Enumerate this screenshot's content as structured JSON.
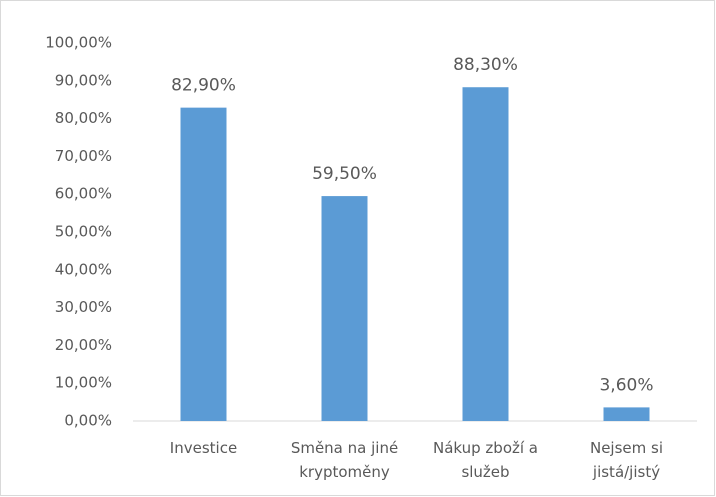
{
  "chart_data": {
    "type": "bar",
    "categories": [
      "Investice",
      "Směna na jiné kryptoměny",
      "Nákup zboží a služeb",
      "Nejsem si jistá/jistý"
    ],
    "values": [
      82.9,
      59.5,
      88.3,
      3.6
    ],
    "value_labels": [
      "82,90%",
      "59,50%",
      "88,30%",
      "3,60%"
    ],
    "color": "#5b9bd5",
    "ylim": [
      0,
      100
    ],
    "yticks": [
      {
        "value": 0,
        "label": "0,00%"
      },
      {
        "value": 10,
        "label": "10,00%"
      },
      {
        "value": 20,
        "label": "20,00%"
      },
      {
        "value": 30,
        "label": "30,00%"
      },
      {
        "value": 40,
        "label": "40,00%"
      },
      {
        "value": 50,
        "label": "50,00%"
      },
      {
        "value": 60,
        "label": "60,00%"
      },
      {
        "value": 70,
        "label": "70,00%"
      },
      {
        "value": 80,
        "label": "80,00%"
      },
      {
        "value": 90,
        "label": "90,00%"
      },
      {
        "value": 100,
        "label": "100,00%"
      }
    ],
    "grid": false
  }
}
